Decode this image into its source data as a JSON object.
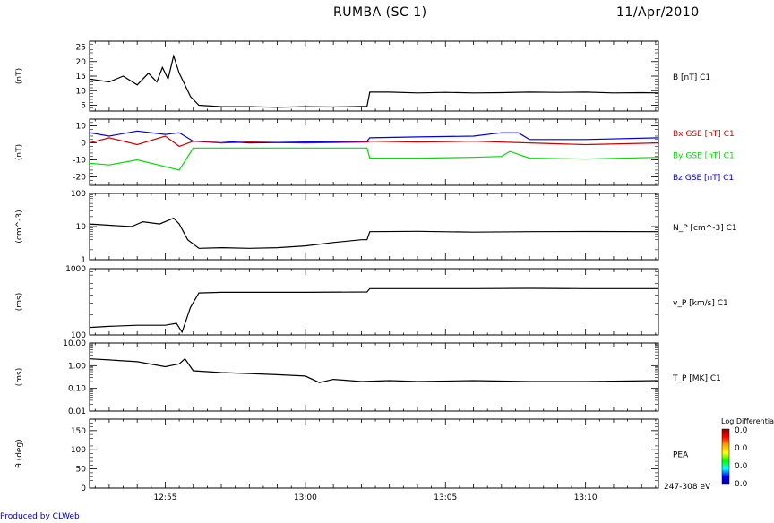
{
  "header": {
    "title": "RUMBA (SC 1)",
    "date": "11/Apr/2010"
  },
  "footer": {
    "produced_by": "Produced by CLWeb"
  },
  "time_axis": {
    "tick_labels": [
      "12:55",
      "13:00",
      "13:05",
      "13:10"
    ],
    "start_min": 52.3,
    "end_min": 72.6
  },
  "colorbar": {
    "title": "Log Differential",
    "tick_labels": [
      "0.0",
      "0.0",
      "0.0",
      "0.0"
    ],
    "colors": [
      "#8b0000",
      "#ff0000",
      "#ffa500",
      "#ffff00",
      "#00ff00",
      "#00ffff",
      "#0000ff",
      "#00008b"
    ]
  },
  "chart_data": [
    {
      "type": "line",
      "panel": "B",
      "ylabel": "(nT)",
      "ylim": [
        3,
        27
      ],
      "yscale": "linear",
      "yticks": [
        5,
        10,
        15,
        20,
        25
      ],
      "series": [
        {
          "name": "B [nT] C1",
          "color": "#000000",
          "x": [
            52.3,
            53.0,
            53.5,
            54.0,
            54.4,
            54.7,
            54.9,
            55.1,
            55.3,
            55.5,
            55.7,
            55.9,
            56.2,
            57.0,
            58.0,
            59.0,
            60.0,
            61.0,
            62.0,
            62.2,
            62.3,
            63.0,
            64.0,
            65.0,
            66.0,
            67.0,
            68.0,
            69.0,
            70.0,
            71.0,
            72.0,
            72.6
          ],
          "y": [
            14,
            13,
            15,
            12,
            16,
            13,
            18,
            14,
            22,
            16,
            12,
            8,
            5,
            4.5,
            4.5,
            4.3,
            4.5,
            4.4,
            4.6,
            4.6,
            9.5,
            9.5,
            9.2,
            9.4,
            9.2,
            9.3,
            9.5,
            9.4,
            9.5,
            9.2,
            9.3,
            9.2
          ]
        }
      ]
    },
    {
      "type": "line",
      "panel": "B components GSE",
      "ylabel": "(nT)",
      "ylim": [
        -25,
        14
      ],
      "yscale": "linear",
      "yticks": [
        -20,
        -10,
        0,
        10
      ],
      "series": [
        {
          "name": "Bx GSE [nT] C1",
          "color": "#cc0000",
          "x": [
            52.3,
            53.0,
            54.0,
            55.0,
            55.5,
            56.0,
            57.0,
            58.0,
            60.0,
            62.2,
            62.3,
            64.0,
            66.0,
            68.0,
            70.0,
            72.6
          ],
          "y": [
            0,
            3,
            -1,
            4,
            -2,
            1,
            0,
            0.5,
            0,
            0.5,
            1,
            0.5,
            1,
            0,
            -1,
            0
          ]
        },
        {
          "name": "By GSE [nT] C1",
          "color": "#00dd00",
          "x": [
            52.3,
            53.0,
            54.0,
            55.0,
            55.5,
            56.0,
            57.0,
            58.0,
            60.0,
            62.2,
            62.3,
            64.0,
            66.0,
            67.0,
            67.3,
            68.0,
            70.0,
            72.6
          ],
          "y": [
            -12,
            -13,
            -10,
            -14,
            -16,
            -3,
            -3,
            -3,
            -3,
            -3,
            -9,
            -9,
            -8.5,
            -8,
            -5,
            -9,
            -9.5,
            -8.5
          ]
        },
        {
          "name": "Bz GSE [nT] C1",
          "color": "#0000dd",
          "x": [
            52.3,
            53.0,
            54.0,
            55.0,
            55.5,
            56.0,
            57.0,
            58.0,
            60.0,
            62.2,
            62.3,
            64.0,
            66.0,
            67.0,
            67.6,
            68.0,
            70.0,
            72.6
          ],
          "y": [
            6,
            4,
            7,
            5,
            6,
            1,
            1,
            0,
            0.5,
            1,
            3,
            3.5,
            4,
            6,
            6,
            2,
            2,
            3
          ]
        }
      ]
    },
    {
      "type": "line",
      "panel": "N_P",
      "ylabel": "(cm^-3)",
      "ylim": [
        1,
        100
      ],
      "yscale": "log",
      "yticks": [
        1,
        10,
        100
      ],
      "tick_labels": [
        "1",
        "10",
        "100"
      ],
      "series": [
        {
          "name": "N_P [cm^-3] C1",
          "color": "#000000",
          "x": [
            52.3,
            53.0,
            53.8,
            54.2,
            54.8,
            55.3,
            55.5,
            55.8,
            56.2,
            57.0,
            58.0,
            59.0,
            60.0,
            61.0,
            62.0,
            62.2,
            62.3,
            64.0,
            66.0,
            68.0,
            70.0,
            72.6
          ],
          "y": [
            12,
            11,
            10,
            14,
            12,
            18,
            12,
            4,
            2.2,
            2.3,
            2.2,
            2.3,
            2.6,
            3.3,
            4.0,
            4.0,
            7.0,
            7.2,
            6.8,
            7.0,
            7.1,
            7.0
          ]
        }
      ]
    },
    {
      "type": "line",
      "panel": "V_P",
      "ylabel": "(ms)",
      "ylim": [
        100,
        1000
      ],
      "yscale": "log",
      "yticks": [
        100,
        1000
      ],
      "tick_labels": [
        "100",
        "1000"
      ],
      "series": [
        {
          "name": "v_P [km/s] C1",
          "color": "#000000",
          "x": [
            52.3,
            53.0,
            54.0,
            55.0,
            55.4,
            55.6,
            55.9,
            56.2,
            57.0,
            58.0,
            60.0,
            62.2,
            62.3,
            64.0,
            66.0,
            68.0,
            70.0,
            72.6
          ],
          "y": [
            130,
            135,
            140,
            140,
            150,
            110,
            260,
            430,
            440,
            440,
            440,
            445,
            500,
            500,
            500,
            505,
            500,
            500
          ]
        }
      ]
    },
    {
      "type": "line",
      "panel": "T_P",
      "ylabel": "(ms)",
      "ylim": [
        0.01,
        10
      ],
      "yscale": "log",
      "yticks": [
        0.01,
        0.1,
        1,
        10
      ],
      "tick_labels": [
        "0.01",
        "0.10",
        "1.00",
        "10.00"
      ],
      "series": [
        {
          "name": "T_P [MK] C1",
          "color": "#000000",
          "x": [
            52.3,
            53.0,
            54.0,
            55.0,
            55.5,
            55.7,
            56.0,
            57.0,
            58.0,
            59.0,
            60.0,
            60.5,
            61.0,
            62.0,
            63.0,
            64.0,
            66.0,
            68.0,
            70.0,
            72.6
          ],
          "y": [
            2.0,
            1.8,
            1.5,
            0.9,
            1.2,
            2.0,
            0.6,
            0.5,
            0.45,
            0.4,
            0.35,
            0.18,
            0.25,
            0.2,
            0.22,
            0.2,
            0.22,
            0.2,
            0.2,
            0.22
          ]
        }
      ]
    },
    {
      "type": "heatmap",
      "panel": "PEA",
      "ylabel": "θ (deg)",
      "ylim": [
        0,
        180
      ],
      "yticks": [
        0,
        50,
        100,
        150
      ],
      "tick_labels": [
        "0",
        "50",
        "100",
        "150"
      ],
      "series": [
        {
          "name": "PEA",
          "values": []
        }
      ],
      "energy_label": "247-308 eV"
    }
  ]
}
